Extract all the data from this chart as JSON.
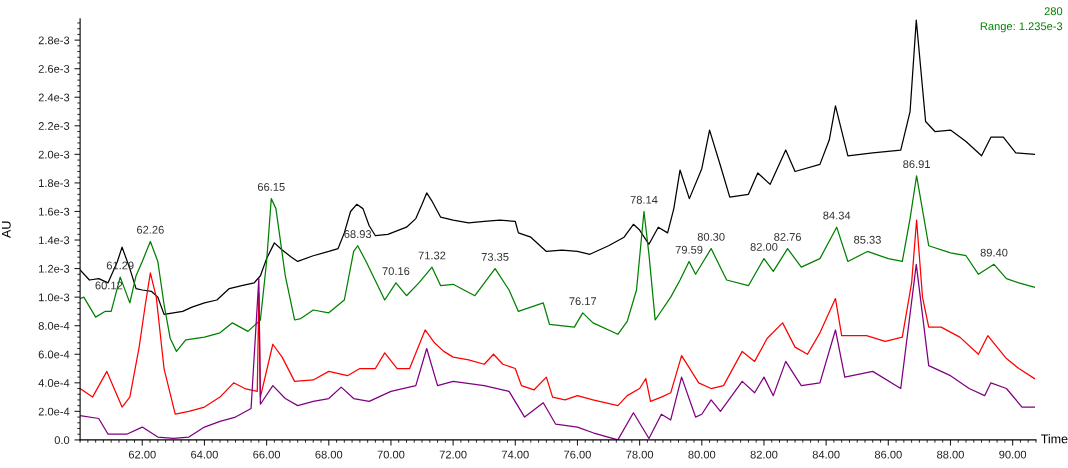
{
  "chart_data": {
    "type": "line",
    "xlabel": "Time",
    "ylabel": "AU",
    "xlim": [
      60,
      90.75
    ],
    "ylim": [
      0,
      0.00295
    ],
    "xticks": [
      {
        "value": 62,
        "label": "62.00"
      },
      {
        "value": 64,
        "label": "64.00"
      },
      {
        "value": 66,
        "label": "66.00"
      },
      {
        "value": 68,
        "label": "68.00"
      },
      {
        "value": 70,
        "label": "70.00"
      },
      {
        "value": 72,
        "label": "72.00"
      },
      {
        "value": 74,
        "label": "74.00"
      },
      {
        "value": 76,
        "label": "76.00"
      },
      {
        "value": 78,
        "label": "78.00"
      },
      {
        "value": 80,
        "label": "80.00"
      },
      {
        "value": 82,
        "label": "82.00"
      },
      {
        "value": 84,
        "label": "84.00"
      },
      {
        "value": 86,
        "label": "86.00"
      },
      {
        "value": 88,
        "label": "88.00"
      },
      {
        "value": 90,
        "label": "90.00"
      }
    ],
    "yticks": [
      {
        "value": 0,
        "label": "0.0"
      },
      {
        "value": 0.0002,
        "label": "2.0e-4"
      },
      {
        "value": 0.0004,
        "label": "4.0e-4"
      },
      {
        "value": 0.0006,
        "label": "6.0e-4"
      },
      {
        "value": 0.0008,
        "label": "8.0e-4"
      },
      {
        "value": 0.001,
        "label": "1.0e-3"
      },
      {
        "value": 0.0012,
        "label": "1.2e-3"
      },
      {
        "value": 0.0014,
        "label": "1.4e-3"
      },
      {
        "value": 0.0016,
        "label": "1.6e-3"
      },
      {
        "value": 0.0018,
        "label": "1.8e-3"
      },
      {
        "value": 0.002,
        "label": "2.0e-3"
      },
      {
        "value": 0.0022,
        "label": "2.2e-3"
      },
      {
        "value": 0.0024,
        "label": "2.4e-3"
      },
      {
        "value": 0.0026,
        "label": "2.6e-3"
      },
      {
        "value": 0.0028,
        "label": "2.8e-3"
      }
    ],
    "grid": false,
    "legend": false,
    "marker": "none",
    "line_style": "solid",
    "series": [
      {
        "color": "#000000",
        "x": [
          60.0,
          60.3,
          60.6,
          60.9,
          61.2,
          61.35,
          61.6,
          61.8,
          62.0,
          62.3,
          62.5,
          62.7,
          63.0,
          63.3,
          63.6,
          64.0,
          64.4,
          64.8,
          65.2,
          65.6,
          65.8,
          66.0,
          66.25,
          66.5,
          66.8,
          67.0,
          67.5,
          68.0,
          68.3,
          68.5,
          68.7,
          68.9,
          69.1,
          69.3,
          69.5,
          69.9,
          70.5,
          70.8,
          71.0,
          71.15,
          71.3,
          71.6,
          72.0,
          72.5,
          73.0,
          73.5,
          74.0,
          74.1,
          74.5,
          75.0,
          75.5,
          76.0,
          76.4,
          77.0,
          77.5,
          77.8,
          78.0,
          78.3,
          78.6,
          78.9,
          79.1,
          79.3,
          79.6,
          80.0,
          80.25,
          80.6,
          80.9,
          81.5,
          81.8,
          82.2,
          82.7,
          83.0,
          83.8,
          84.1,
          84.3,
          84.7,
          85.5,
          86.4,
          86.7,
          86.9,
          87.2,
          87.5,
          88.0,
          88.5,
          89.0,
          89.3,
          89.7,
          90.1,
          90.7
        ],
        "values": [
          0.00119,
          0.00112,
          0.00113,
          0.0011,
          0.00125,
          0.00135,
          0.0012,
          0.00106,
          0.00105,
          0.00104,
          0.001,
          0.00088,
          0.00089,
          0.0009,
          0.00093,
          0.00096,
          0.00098,
          0.00106,
          0.00108,
          0.0011,
          0.00115,
          0.00127,
          0.00138,
          0.00133,
          0.00128,
          0.00125,
          0.00129,
          0.00132,
          0.00134,
          0.00145,
          0.0016,
          0.00165,
          0.00162,
          0.0015,
          0.00143,
          0.00144,
          0.00149,
          0.00155,
          0.00165,
          0.00173,
          0.00168,
          0.00156,
          0.00154,
          0.00152,
          0.00153,
          0.00154,
          0.00153,
          0.00145,
          0.00142,
          0.00132,
          0.00133,
          0.00132,
          0.0013,
          0.00136,
          0.00142,
          0.00151,
          0.00147,
          0.00137,
          0.00149,
          0.00145,
          0.00162,
          0.00189,
          0.00169,
          0.0019,
          0.00217,
          0.00192,
          0.0017,
          0.00172,
          0.00187,
          0.00179,
          0.00203,
          0.00188,
          0.00193,
          0.0021,
          0.00234,
          0.00199,
          0.00201,
          0.00203,
          0.0023,
          0.00294,
          0.00223,
          0.00216,
          0.00217,
          0.00209,
          0.00199,
          0.00212,
          0.00212,
          0.00201,
          0.002
        ]
      },
      {
        "color": "#008000",
        "x": [
          60.0,
          60.12,
          60.5,
          60.8,
          61.0,
          61.29,
          61.6,
          61.8,
          62.0,
          62.26,
          62.5,
          62.7,
          62.9,
          63.1,
          63.4,
          64.0,
          64.5,
          64.9,
          65.4,
          65.8,
          66.0,
          66.15,
          66.3,
          66.6,
          66.9,
          67.1,
          67.5,
          68.0,
          68.5,
          68.8,
          68.93,
          69.2,
          69.8,
          70.16,
          70.5,
          70.9,
          71.32,
          71.6,
          72.0,
          72.7,
          73.35,
          73.8,
          74.1,
          74.9,
          75.1,
          75.9,
          76.17,
          76.5,
          77.3,
          77.6,
          77.9,
          78.14,
          78.3,
          78.5,
          79.0,
          79.3,
          79.59,
          79.8,
          80.3,
          80.8,
          81.5,
          82.0,
          82.3,
          82.76,
          83.2,
          83.8,
          84.34,
          84.7,
          85.33,
          86.0,
          86.45,
          86.7,
          86.91,
          87.3,
          88.0,
          88.5,
          88.9,
          89.4,
          89.8,
          90.2,
          90.7
        ],
        "values": [
          0.00099,
          0.001,
          0.00086,
          0.0009,
          0.0009,
          0.00114,
          0.00096,
          0.00115,
          0.00125,
          0.00139,
          0.00125,
          0.00095,
          0.00071,
          0.00062,
          0.0007,
          0.00072,
          0.00075,
          0.00082,
          0.00076,
          0.00084,
          0.00125,
          0.00169,
          0.00162,
          0.00115,
          0.00084,
          0.00085,
          0.00091,
          0.00089,
          0.00098,
          0.00132,
          0.00136,
          0.00125,
          0.00098,
          0.0011,
          0.00101,
          0.0011,
          0.00121,
          0.00108,
          0.00109,
          0.00101,
          0.0012,
          0.00105,
          0.0009,
          0.00096,
          0.00081,
          0.00079,
          0.00089,
          0.00082,
          0.00074,
          0.00083,
          0.00105,
          0.0016,
          0.0013,
          0.00084,
          0.001,
          0.00112,
          0.00125,
          0.00116,
          0.00134,
          0.00112,
          0.00108,
          0.00127,
          0.00118,
          0.00134,
          0.00121,
          0.00127,
          0.00149,
          0.00125,
          0.00132,
          0.00127,
          0.00125,
          0.00155,
          0.00185,
          0.00136,
          0.00131,
          0.00129,
          0.00116,
          0.00123,
          0.00113,
          0.0011,
          0.00107
        ]
      },
      {
        "color": "#ff0000",
        "x": [
          60.0,
          60.4,
          60.86,
          61.35,
          61.6,
          61.9,
          62.1,
          62.26,
          62.45,
          62.7,
          63.06,
          63.5,
          64.0,
          64.5,
          64.94,
          65.3,
          65.7,
          65.75,
          65.8,
          66.2,
          66.5,
          66.9,
          67.5,
          68.0,
          68.6,
          69.0,
          69.5,
          69.8,
          70.2,
          70.6,
          71.1,
          71.4,
          71.7,
          72.0,
          72.5,
          73.0,
          73.3,
          73.6,
          74.0,
          74.2,
          74.6,
          75.0,
          75.2,
          75.6,
          76.0,
          76.5,
          77.3,
          77.6,
          78.0,
          78.2,
          78.35,
          78.7,
          79.0,
          79.35,
          79.9,
          80.3,
          80.7,
          81.3,
          81.7,
          82.1,
          82.6,
          83.0,
          83.4,
          83.8,
          84.3,
          84.5,
          85.3,
          85.9,
          86.45,
          86.75,
          86.91,
          87.1,
          87.3,
          87.7,
          88.3,
          88.9,
          89.2,
          89.8,
          90.2,
          90.7
        ],
        "values": [
          0.00036,
          0.0003,
          0.00048,
          0.00023,
          0.0003,
          0.00065,
          0.00095,
          0.00117,
          0.001,
          0.0005,
          0.00018,
          0.0002,
          0.00023,
          0.0003,
          0.0004,
          0.00036,
          0.00034,
          0.00103,
          0.0003,
          0.00067,
          0.00058,
          0.00041,
          0.00042,
          0.00048,
          0.00045,
          0.0005,
          0.0005,
          0.00061,
          0.0005,
          0.0005,
          0.00077,
          0.00068,
          0.00062,
          0.00058,
          0.00056,
          0.00053,
          0.0006,
          0.00053,
          0.0005,
          0.00038,
          0.00035,
          0.00044,
          0.0003,
          0.00028,
          0.00031,
          0.00028,
          0.00024,
          0.00031,
          0.00036,
          0.00043,
          0.00027,
          0.0003,
          0.00033,
          0.00059,
          0.0004,
          0.00036,
          0.00038,
          0.00062,
          0.00055,
          0.00071,
          0.00082,
          0.00065,
          0.0006,
          0.00075,
          0.00099,
          0.00073,
          0.00073,
          0.00069,
          0.00072,
          0.0011,
          0.00154,
          0.001,
          0.00079,
          0.00079,
          0.00072,
          0.0006,
          0.00073,
          0.00057,
          0.0005,
          0.00043
        ]
      },
      {
        "color": "#800080",
        "x": [
          60.0,
          60.6,
          60.9,
          61.5,
          62.0,
          62.5,
          63.0,
          63.5,
          64.0,
          64.5,
          65.0,
          65.5,
          65.75,
          65.8,
          66.2,
          66.6,
          67.0,
          67.5,
          68.0,
          68.4,
          68.8,
          69.3,
          70.0,
          70.8,
          71.15,
          71.5,
          72.0,
          73.0,
          73.8,
          74.3,
          74.9,
          75.3,
          76.0,
          76.5,
          77.3,
          77.8,
          78.3,
          78.7,
          79.0,
          79.35,
          79.8,
          80.0,
          80.3,
          80.6,
          81.3,
          81.7,
          82.0,
          82.3,
          82.7,
          83.2,
          83.8,
          84.3,
          84.6,
          85.5,
          86.4,
          86.9,
          87.3,
          88.0,
          88.6,
          89.1,
          89.3,
          89.8,
          90.3,
          90.7
        ],
        "values": [
          0.00017,
          0.00015,
          4e-05,
          4e-05,
          9e-05,
          2e-05,
          1e-05,
          2e-05,
          9e-05,
          0.00013,
          0.00016,
          0.00022,
          0.00113,
          0.00025,
          0.00038,
          0.00029,
          0.00024,
          0.00027,
          0.00029,
          0.00037,
          0.00029,
          0.00027,
          0.00034,
          0.00038,
          0.00064,
          0.00038,
          0.00041,
          0.00038,
          0.00034,
          0.00016,
          0.00026,
          0.00011,
          9e-05,
          5e-05,
          0.0,
          0.00019,
          1e-05,
          0.00018,
          0.00014,
          0.00044,
          0.00016,
          0.00018,
          0.00028,
          0.0002,
          0.00041,
          0.00033,
          0.00044,
          0.00031,
          0.00055,
          0.00038,
          0.0004,
          0.00077,
          0.00044,
          0.00048,
          0.00036,
          0.00123,
          0.00052,
          0.00045,
          0.00036,
          0.00031,
          0.0004,
          0.00036,
          0.00023,
          0.00023
        ]
      }
    ],
    "annotations": [
      "280",
      "Range: 1.235e-3",
      {
        "text": "60.12",
        "x": 60.12,
        "y": 0.001
      },
      {
        "text": "61.29",
        "x": 61.29,
        "y": 0.00114
      },
      {
        "text": "62.26",
        "x": 62.26,
        "y": 0.00139
      },
      {
        "text": "66.15",
        "x": 66.15,
        "y": 0.00169
      },
      {
        "text": "68.93",
        "x": 68.93,
        "y": 0.00136
      },
      {
        "text": "70.16",
        "x": 70.16,
        "y": 0.0011
      },
      {
        "text": "71.32",
        "x": 71.32,
        "y": 0.00121
      },
      {
        "text": "73.35",
        "x": 73.35,
        "y": 0.0012
      },
      {
        "text": "76.17",
        "x": 76.17,
        "y": 0.00089
      },
      {
        "text": "78.14",
        "x": 78.14,
        "y": 0.0016
      },
      {
        "text": "79.59",
        "x": 79.59,
        "y": 0.00125
      },
      {
        "text": "80.30",
        "x": 80.3,
        "y": 0.00134
      },
      {
        "text": "82.00",
        "x": 82.0,
        "y": 0.00127
      },
      {
        "text": "82.76",
        "x": 82.76,
        "y": 0.00134
      },
      {
        "text": "84.34",
        "x": 84.34,
        "y": 0.00149
      },
      {
        "text": "85.33",
        "x": 85.33,
        "y": 0.00132
      },
      {
        "text": "86.91",
        "x": 86.91,
        "y": 0.00185
      },
      {
        "text": "89.40",
        "x": 89.4,
        "y": 0.00123
      }
    ]
  }
}
